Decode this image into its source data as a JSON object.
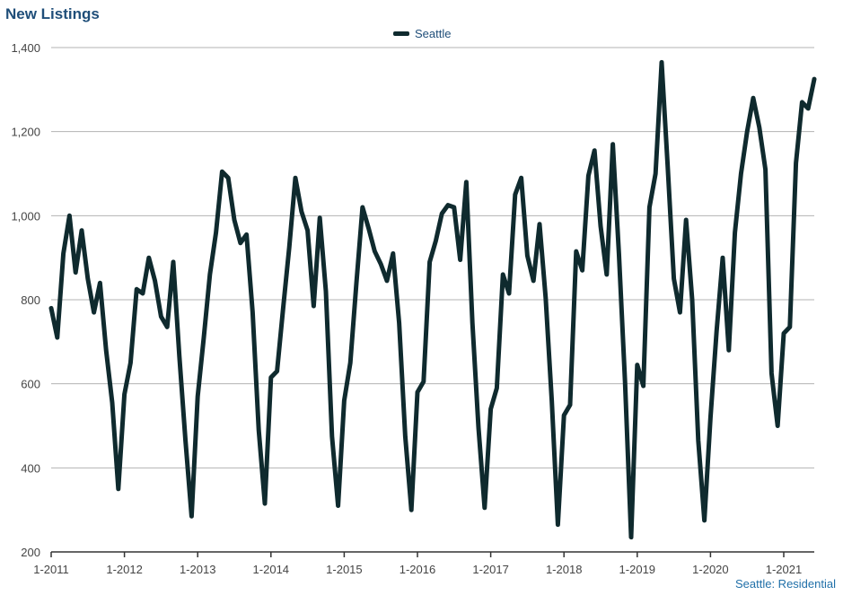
{
  "title": "New Listings",
  "footer": "Seattle: Residential",
  "chart_data": {
    "type": "line",
    "title": "New Listings",
    "xlabel": "",
    "ylabel": "",
    "ylim": [
      200,
      1400
    ],
    "y_ticks": [
      "200",
      "400",
      "600",
      "800",
      "1,000",
      "1,200",
      "1,400"
    ],
    "x_ticks": [
      "1-2011",
      "1-2012",
      "1-2013",
      "1-2014",
      "1-2015",
      "1-2016",
      "1-2017",
      "1-2018",
      "1-2019",
      "1-2020",
      "1-2021"
    ],
    "grid": true,
    "legend": "top-center",
    "line_color": "#0f2a2e",
    "series": [
      {
        "name": "Seattle",
        "values": [
          780,
          710,
          910,
          1000,
          865,
          965,
          850,
          770,
          840,
          680,
          555,
          350,
          575,
          650,
          825,
          815,
          900,
          845,
          760,
          735,
          890,
          665,
          465,
          285,
          570,
          710,
          860,
          960,
          1105,
          1090,
          990,
          935,
          955,
          770,
          490,
          315,
          615,
          630,
          780,
          925,
          1090,
          1010,
          965,
          785,
          995,
          820,
          475,
          310,
          560,
          650,
          840,
          1020,
          970,
          915,
          885,
          845,
          910,
          745,
          475,
          300,
          580,
          605,
          890,
          940,
          1005,
          1025,
          1020,
          895,
          1080,
          745,
          495,
          305,
          540,
          590,
          860,
          815,
          1050,
          1090,
          905,
          845,
          980,
          805,
          560,
          265,
          525,
          550,
          915,
          870,
          1095,
          1155,
          975,
          860,
          1170,
          910,
          605,
          235,
          645,
          595,
          1020,
          1100,
          1365,
          1115,
          850,
          770,
          990,
          800,
          465,
          275,
          520,
          725,
          900,
          680,
          960,
          1100,
          1200,
          1280,
          1210,
          1110,
          625,
          500,
          720,
          735,
          1125,
          1270,
          1255,
          1325
        ]
      }
    ]
  }
}
